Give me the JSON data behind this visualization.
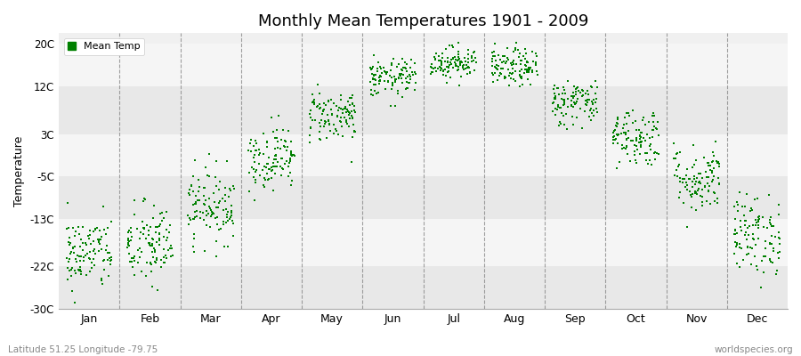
{
  "title": "Monthly Mean Temperatures 1901 - 2009",
  "ylabel": "Temperature",
  "subtitle_left": "Latitude 51.25 Longitude -79.75",
  "subtitle_right": "worldspecies.org",
  "yticks": [
    -30,
    -22,
    -13,
    -5,
    3,
    12,
    20
  ],
  "ytick_labels": [
    "-30C",
    "-22C",
    "-13C",
    "-5C",
    "3C",
    "12C",
    "20C"
  ],
  "ylim": [
    -30,
    22
  ],
  "months": [
    "Jan",
    "Feb",
    "Mar",
    "Apr",
    "May",
    "Jun",
    "Jul",
    "Aug",
    "Sep",
    "Oct",
    "Nov",
    "Dec"
  ],
  "dot_color": "#008000",
  "background_color": "#ffffff",
  "plot_bg_color": "#f0f0f0",
  "legend_label": "Mean Temp",
  "monthly_means": [
    -19.5,
    -18.0,
    -10.5,
    -1.5,
    6.5,
    13.5,
    16.5,
    15.5,
    9.0,
    2.5,
    -5.5,
    -16.0
  ],
  "monthly_stds": [
    3.5,
    4.0,
    3.5,
    3.0,
    2.5,
    1.8,
    1.5,
    1.8,
    2.2,
    2.8,
    3.2,
    3.8
  ],
  "n_years": 109,
  "seed": 42,
  "band_colors": [
    "#e8e8e8",
    "#f5f5f5"
  ],
  "band_edges": [
    -30,
    -22,
    -13,
    -5,
    3,
    12,
    20
  ]
}
